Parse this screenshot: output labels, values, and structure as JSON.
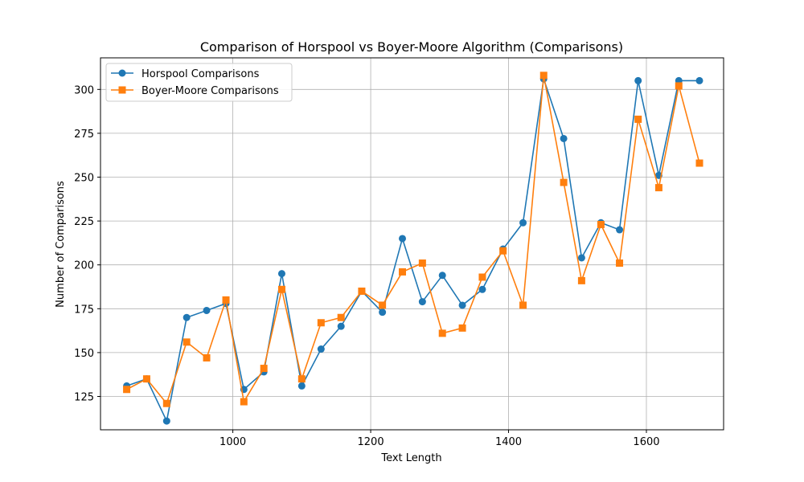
{
  "chart_data": {
    "type": "line",
    "title": "Comparison of Horspool vs Boyer-Moore Algorithm (Comparisons)",
    "xlabel": "Text Length",
    "ylabel": "Number of Comparisons",
    "xlim": [
      808,
      1712
    ],
    "ylim": [
      106,
      318
    ],
    "xticks": [
      1000,
      1200,
      1400,
      1600
    ],
    "yticks": [
      125,
      150,
      175,
      200,
      225,
      250,
      275,
      300
    ],
    "grid": true,
    "legend_position": "upper-left",
    "x": [
      846,
      875,
      904,
      933,
      962,
      990,
      1016,
      1045,
      1071,
      1100,
      1128,
      1157,
      1187,
      1217,
      1246,
      1275,
      1304,
      1333,
      1362,
      1392,
      1421,
      1451,
      1480,
      1506,
      1534,
      1561,
      1588,
      1618,
      1647,
      1677
    ],
    "series": [
      {
        "name": "Horspool Comparisons",
        "color": "#1f77b4",
        "marker": "circle",
        "values": [
          131,
          135,
          111,
          170,
          174,
          178,
          129,
          139,
          195,
          131,
          152,
          165,
          185,
          173,
          215,
          179,
          194,
          177,
          186,
          209,
          224,
          306,
          272,
          204,
          224,
          220,
          305,
          251,
          305,
          305
        ]
      },
      {
        "name": "Boyer-Moore Comparisons",
        "color": "#ff7f0e",
        "marker": "square",
        "values": [
          129,
          135,
          121,
          156,
          147,
          180,
          122,
          141,
          186,
          135,
          167,
          170,
          185,
          177,
          196,
          201,
          161,
          164,
          193,
          208,
          177,
          308,
          247,
          191,
          223,
          201,
          283,
          244,
          302,
          258
        ]
      }
    ]
  }
}
